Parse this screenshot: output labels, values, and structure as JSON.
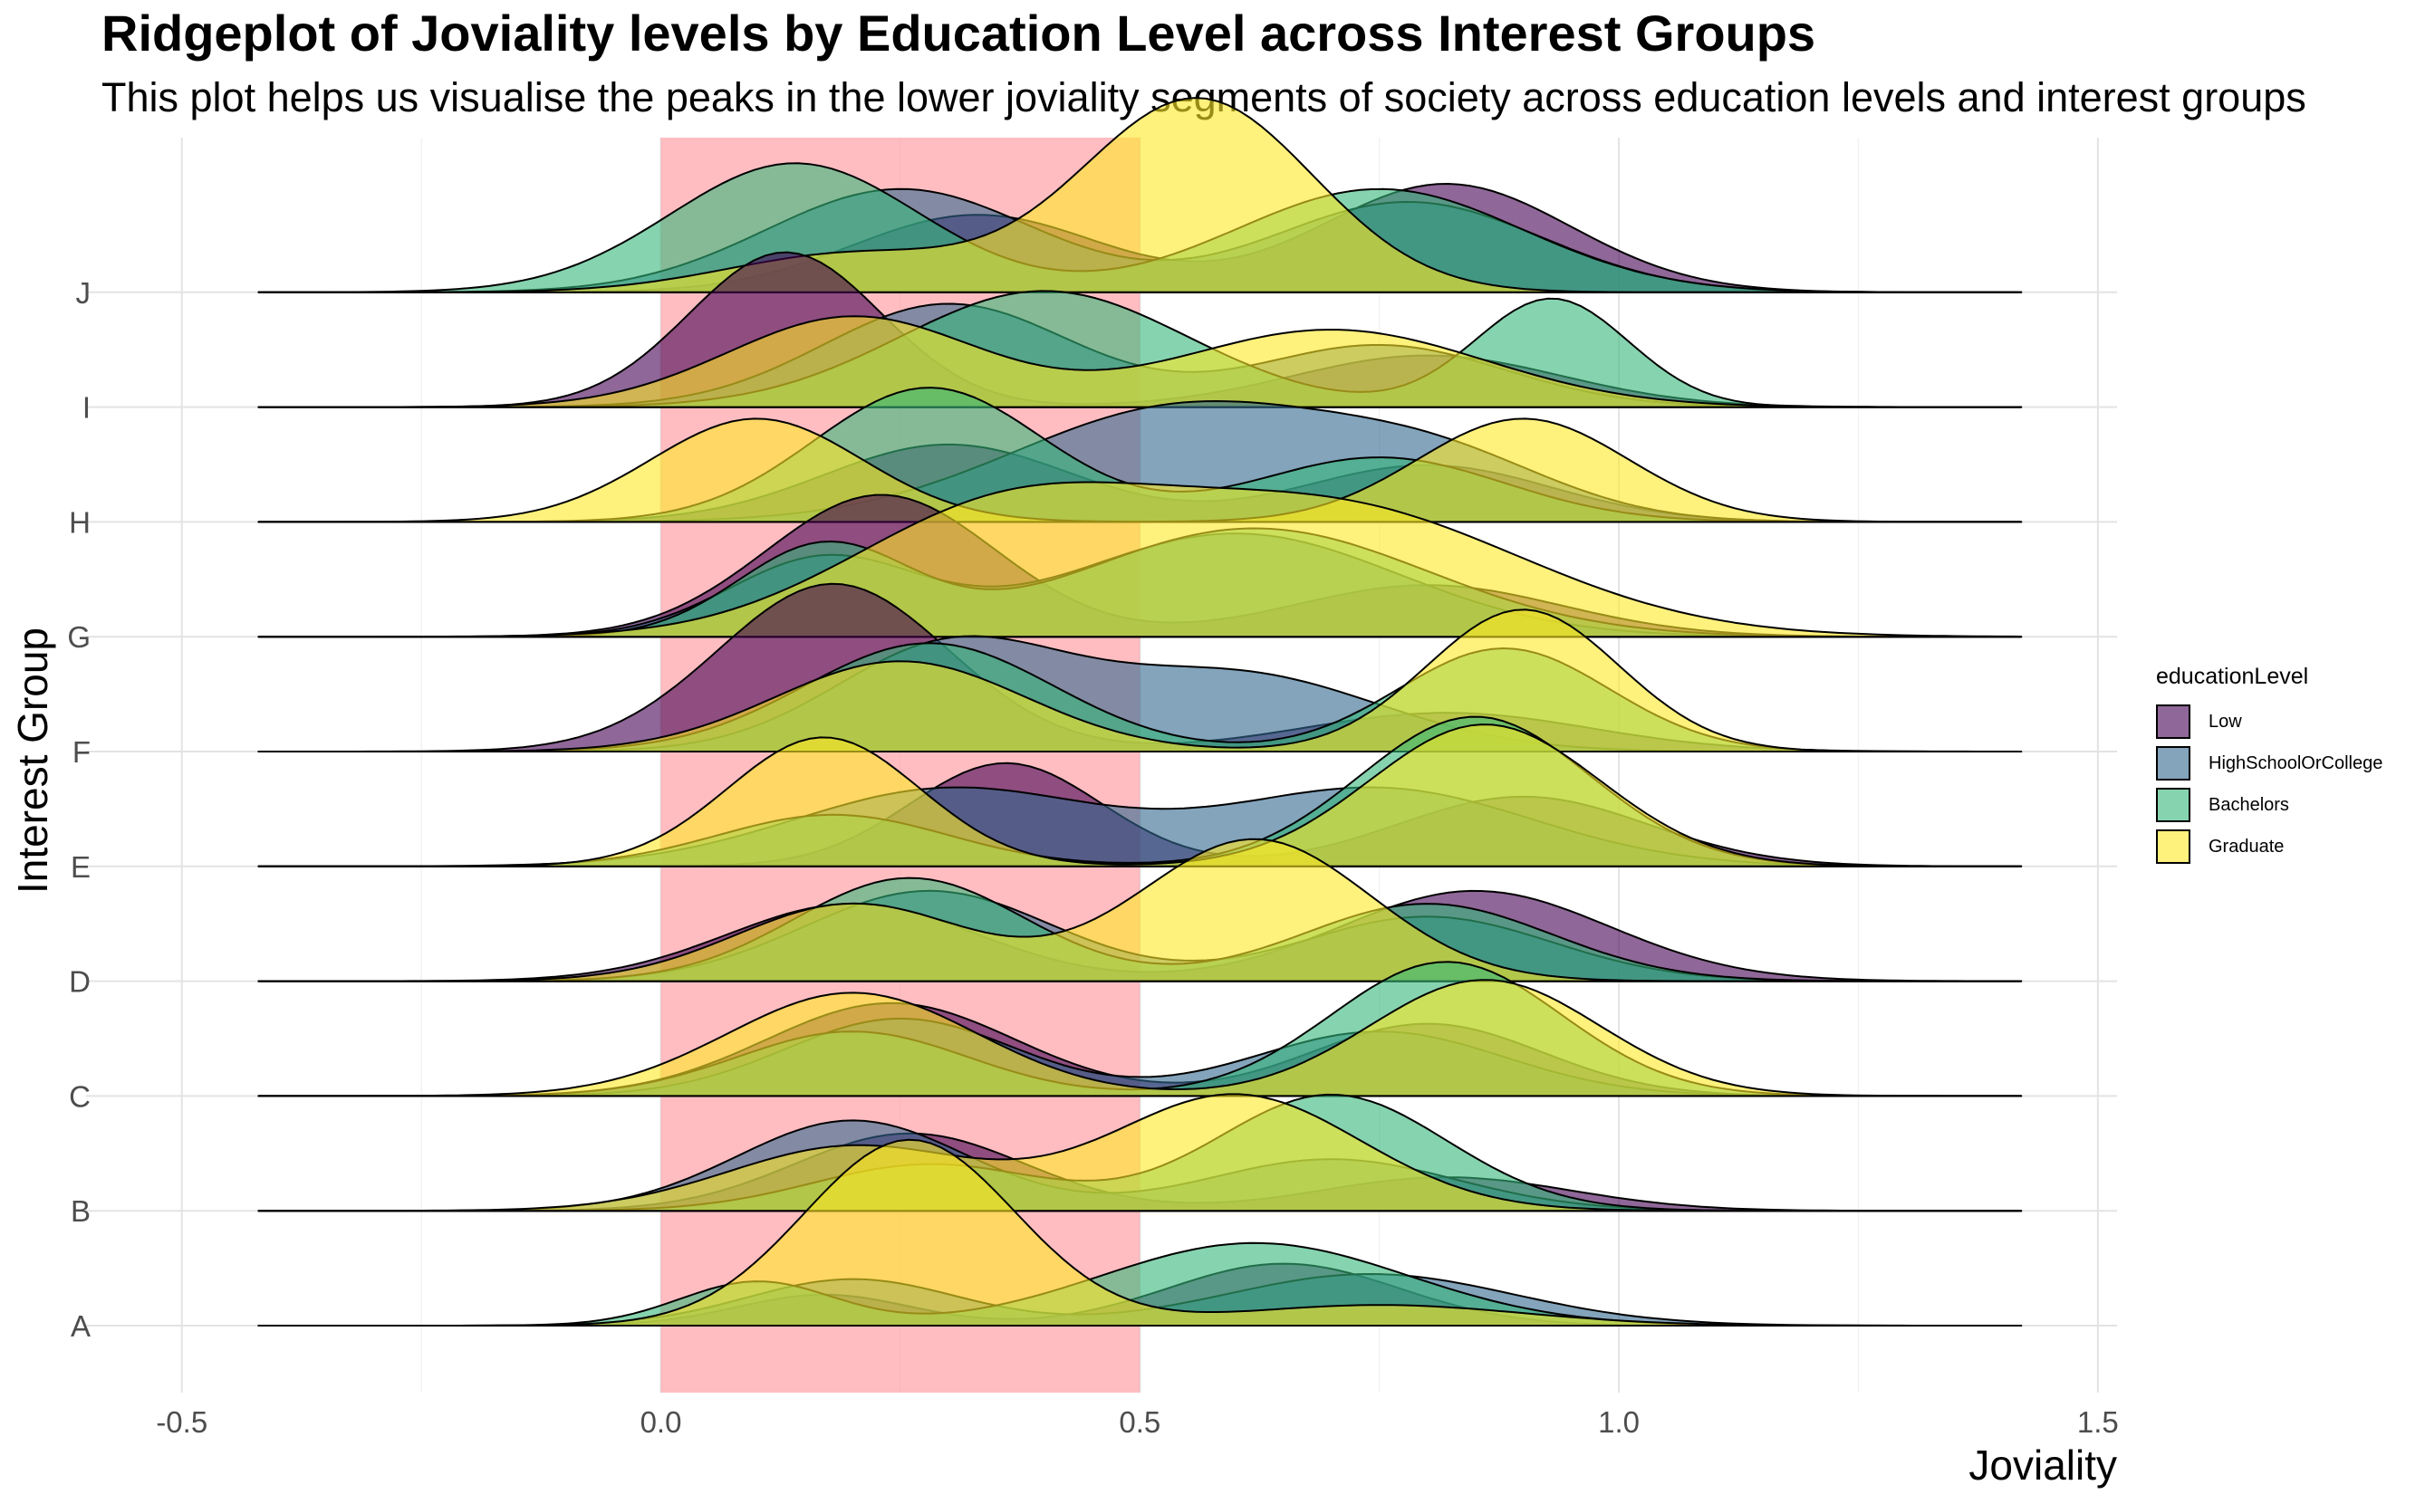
{
  "chart_data": {
    "type": "ridgeline",
    "title": "Ridgeplot of Joviality levels by Education Level across Interest Groups",
    "subtitle": "This plot helps us visualise the peaks in the lower joviality segments of society across education levels and interest groups",
    "xlabel": "Joviality",
    "ylabel": "Interest Group",
    "xlim": [
      -0.6,
      1.52
    ],
    "x_ticks": [
      "-0.5",
      "0.0",
      "0.5",
      "1.0",
      "1.5"
    ],
    "x_tick_values": [
      -0.5,
      0.0,
      0.5,
      1.0,
      1.5
    ],
    "groups": [
      "A",
      "B",
      "C",
      "D",
      "E",
      "F",
      "G",
      "H",
      "I",
      "J"
    ],
    "density_range": [
      -0.42,
      1.42
    ],
    "highlight_band": {
      "from": 0.0,
      "to": 0.5,
      "color": "#ff9aa2"
    },
    "grid": true,
    "legend_position": "right",
    "legend": {
      "title": "educationLevel",
      "items": [
        {
          "name": "Low",
          "color": "#440154"
        },
        {
          "name": "HighSchoolOrCollege",
          "color": "#31688e"
        },
        {
          "name": "Bachelors",
          "color": "#35b779"
        },
        {
          "name": "Graduate",
          "color": "#fde725"
        }
      ]
    },
    "series": [
      {
        "name": "Low",
        "color": "#440154",
        "ridges": [
          {
            "group": "A",
            "peaks": [
              [
                0.17,
                0.09,
                0.12
              ],
              [
                0.65,
                0.12,
                0.24
              ]
            ]
          },
          {
            "group": "B",
            "peaks": [
              [
                0.26,
                0.12,
                0.3
              ],
              [
                0.82,
                0.13,
                0.13
              ]
            ]
          },
          {
            "group": "C",
            "peaks": [
              [
                0.24,
                0.13,
                0.36
              ],
              [
                0.8,
                0.12,
                0.28
              ]
            ]
          },
          {
            "group": "D",
            "peaks": [
              [
                0.2,
                0.13,
                0.3
              ],
              [
                0.85,
                0.14,
                0.35
              ]
            ]
          },
          {
            "group": "E",
            "peaks": [
              [
                0.36,
                0.1,
                0.4
              ],
              [
                0.9,
                0.13,
                0.27
              ]
            ]
          },
          {
            "group": "F",
            "peaks": [
              [
                0.18,
                0.12,
                0.65
              ],
              [
                0.82,
                0.15,
                0.15
              ]
            ]
          },
          {
            "group": "G",
            "peaks": [
              [
                0.23,
                0.12,
                0.55
              ],
              [
                0.8,
                0.14,
                0.2
              ]
            ]
          },
          {
            "group": "H",
            "peaks": [
              [
                0.3,
                0.13,
                0.3
              ],
              [
                0.8,
                0.13,
                0.22
              ]
            ]
          },
          {
            "group": "I",
            "peaks": [
              [
                0.13,
                0.1,
                0.6
              ],
              [
                0.8,
                0.14,
                0.2
              ]
            ]
          },
          {
            "group": "J",
            "peaks": [
              [
                0.33,
                0.13,
                0.3
              ],
              [
                0.82,
                0.13,
                0.42
              ]
            ]
          }
        ]
      },
      {
        "name": "HighSchoolOrCollege",
        "color": "#31688e",
        "ridges": [
          {
            "group": "A",
            "peaks": [
              [
                0.2,
                0.11,
                0.18
              ],
              [
                0.74,
                0.15,
                0.2
              ]
            ]
          },
          {
            "group": "B",
            "peaks": [
              [
                0.2,
                0.12,
                0.35
              ],
              [
                0.7,
                0.13,
                0.2
              ]
            ]
          },
          {
            "group": "C",
            "peaks": [
              [
                0.25,
                0.12,
                0.3
              ],
              [
                0.75,
                0.13,
                0.25
              ]
            ]
          },
          {
            "group": "D",
            "peaks": [
              [
                0.28,
                0.13,
                0.35
              ],
              [
                0.8,
                0.13,
                0.25
              ]
            ]
          },
          {
            "group": "E",
            "peaks": [
              [
                0.3,
                0.16,
                0.3
              ],
              [
                0.75,
                0.16,
                0.3
              ]
            ]
          },
          {
            "group": "F",
            "peaks": [
              [
                0.3,
                0.12,
                0.4
              ],
              [
                0.6,
                0.15,
                0.3
              ]
            ]
          },
          {
            "group": "G",
            "peaks": [
              [
                0.17,
                0.1,
                0.3
              ],
              [
                0.6,
                0.17,
                0.4
              ]
            ]
          },
          {
            "group": "H",
            "peaks": [
              [
                0.55,
                0.18,
                0.45
              ],
              [
                0.82,
                0.12,
                0.18
              ]
            ]
          },
          {
            "group": "I",
            "peaks": [
              [
                0.3,
                0.13,
                0.4
              ],
              [
                0.75,
                0.13,
                0.24
              ]
            ]
          },
          {
            "group": "J",
            "peaks": [
              [
                0.25,
                0.14,
                0.4
              ],
              [
                0.78,
                0.14,
                0.35
              ]
            ]
          }
        ]
      },
      {
        "name": "Bachelors",
        "color": "#35b779",
        "ridges": [
          {
            "group": "A",
            "peaks": [
              [
                0.1,
                0.08,
                0.17
              ],
              [
                0.62,
                0.16,
                0.32
              ]
            ]
          },
          {
            "group": "B",
            "peaks": [
              [
                0.28,
                0.12,
                0.18
              ],
              [
                0.7,
                0.12,
                0.45
              ]
            ]
          },
          {
            "group": "C",
            "peaks": [
              [
                0.2,
                0.12,
                0.25
              ],
              [
                0.82,
                0.12,
                0.52
              ]
            ]
          },
          {
            "group": "D",
            "peaks": [
              [
                0.26,
                0.12,
                0.4
              ],
              [
                0.8,
                0.13,
                0.3
              ]
            ]
          },
          {
            "group": "E",
            "peaks": [
              [
                0.18,
                0.12,
                0.2
              ],
              [
                0.85,
                0.12,
                0.58
              ]
            ]
          },
          {
            "group": "F",
            "peaks": [
              [
                0.28,
                0.13,
                0.42
              ],
              [
                0.88,
                0.11,
                0.4
              ]
            ]
          },
          {
            "group": "G",
            "peaks": [
              [
                0.17,
                0.09,
                0.35
              ],
              [
                0.62,
                0.18,
                0.42
              ]
            ]
          },
          {
            "group": "H",
            "peaks": [
              [
                0.28,
                0.12,
                0.52
              ],
              [
                0.75,
                0.13,
                0.25
              ]
            ]
          },
          {
            "group": "I",
            "peaks": [
              [
                0.4,
                0.15,
                0.45
              ],
              [
                0.93,
                0.08,
                0.42
              ]
            ]
          },
          {
            "group": "J",
            "peaks": [
              [
                0.14,
                0.13,
                0.5
              ],
              [
                0.75,
                0.15,
                0.4
              ]
            ]
          }
        ]
      },
      {
        "name": "Graduate",
        "color": "#fde725",
        "ridges": [
          {
            "group": "A",
            "peaks": [
              [
                0.26,
                0.11,
                0.72
              ],
              [
                0.75,
                0.15,
                0.08
              ]
            ]
          },
          {
            "group": "B",
            "peaks": [
              [
                0.2,
                0.13,
                0.25
              ],
              [
                0.6,
                0.13,
                0.45
              ]
            ]
          },
          {
            "group": "C",
            "peaks": [
              [
                0.2,
                0.13,
                0.4
              ],
              [
                0.86,
                0.12,
                0.45
              ]
            ]
          },
          {
            "group": "D",
            "peaks": [
              [
                0.2,
                0.12,
                0.3
              ],
              [
                0.62,
                0.12,
                0.55
              ]
            ]
          },
          {
            "group": "E",
            "peaks": [
              [
                0.17,
                0.1,
                0.5
              ],
              [
                0.86,
                0.12,
                0.55
              ]
            ]
          },
          {
            "group": "F",
            "peaks": [
              [
                0.25,
                0.13,
                0.35
              ],
              [
                0.9,
                0.1,
                0.55
              ]
            ]
          },
          {
            "group": "G",
            "peaks": [
              [
                0.35,
                0.16,
                0.45
              ],
              [
                0.7,
                0.2,
                0.5
              ]
            ]
          },
          {
            "group": "H",
            "peaks": [
              [
                0.1,
                0.11,
                0.4
              ],
              [
                0.9,
                0.11,
                0.4
              ]
            ]
          },
          {
            "group": "I",
            "peaks": [
              [
                0.2,
                0.13,
                0.35
              ],
              [
                0.7,
                0.16,
                0.3
              ]
            ]
          },
          {
            "group": "J",
            "peaks": [
              [
                0.56,
                0.12,
                0.75
              ],
              [
                0.2,
                0.13,
                0.15
              ]
            ]
          }
        ]
      }
    ]
  }
}
